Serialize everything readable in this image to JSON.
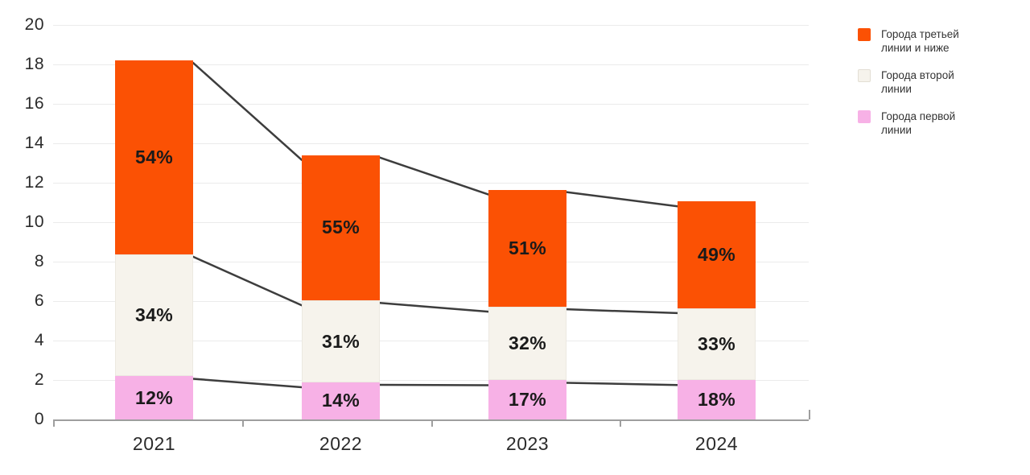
{
  "chart_data": {
    "type": "bar",
    "subtype": "stacked-bars-with-boundary-lines",
    "categories": [
      "2021",
      "2022",
      "2023",
      "2024"
    ],
    "totals": [
      18.2,
      13.4,
      11.65,
      11.05
    ],
    "series": [
      {
        "name": "Города первой линии",
        "color": "#F7B1E6",
        "pct": [
          12,
          14,
          17,
          18
        ],
        "labels": [
          "12%",
          "14%",
          "17%",
          "18%"
        ]
      },
      {
        "name": "Города второй линии",
        "color": "#F6F3EC",
        "pct": [
          34,
          31,
          32,
          33
        ],
        "labels": [
          "34%",
          "31%",
          "32%",
          "33%"
        ]
      },
      {
        "name": "Города третьей линии и ниже",
        "color": "#FB5104",
        "pct": [
          54,
          55,
          51,
          49
        ],
        "labels": [
          "54%",
          "55%",
          "51%",
          "49%"
        ]
      }
    ],
    "legend_order": [
      2,
      1,
      0
    ],
    "y_ticks": [
      0,
      2,
      4,
      6,
      8,
      10,
      12,
      14,
      16,
      18,
      20
    ],
    "ylim": [
      0,
      20
    ],
    "grid": "horizontal",
    "legend_position": "top-right",
    "line_color": "#3d3d3d",
    "axis_color": "#9e9e9e",
    "grid_color": "#ebebeb"
  }
}
